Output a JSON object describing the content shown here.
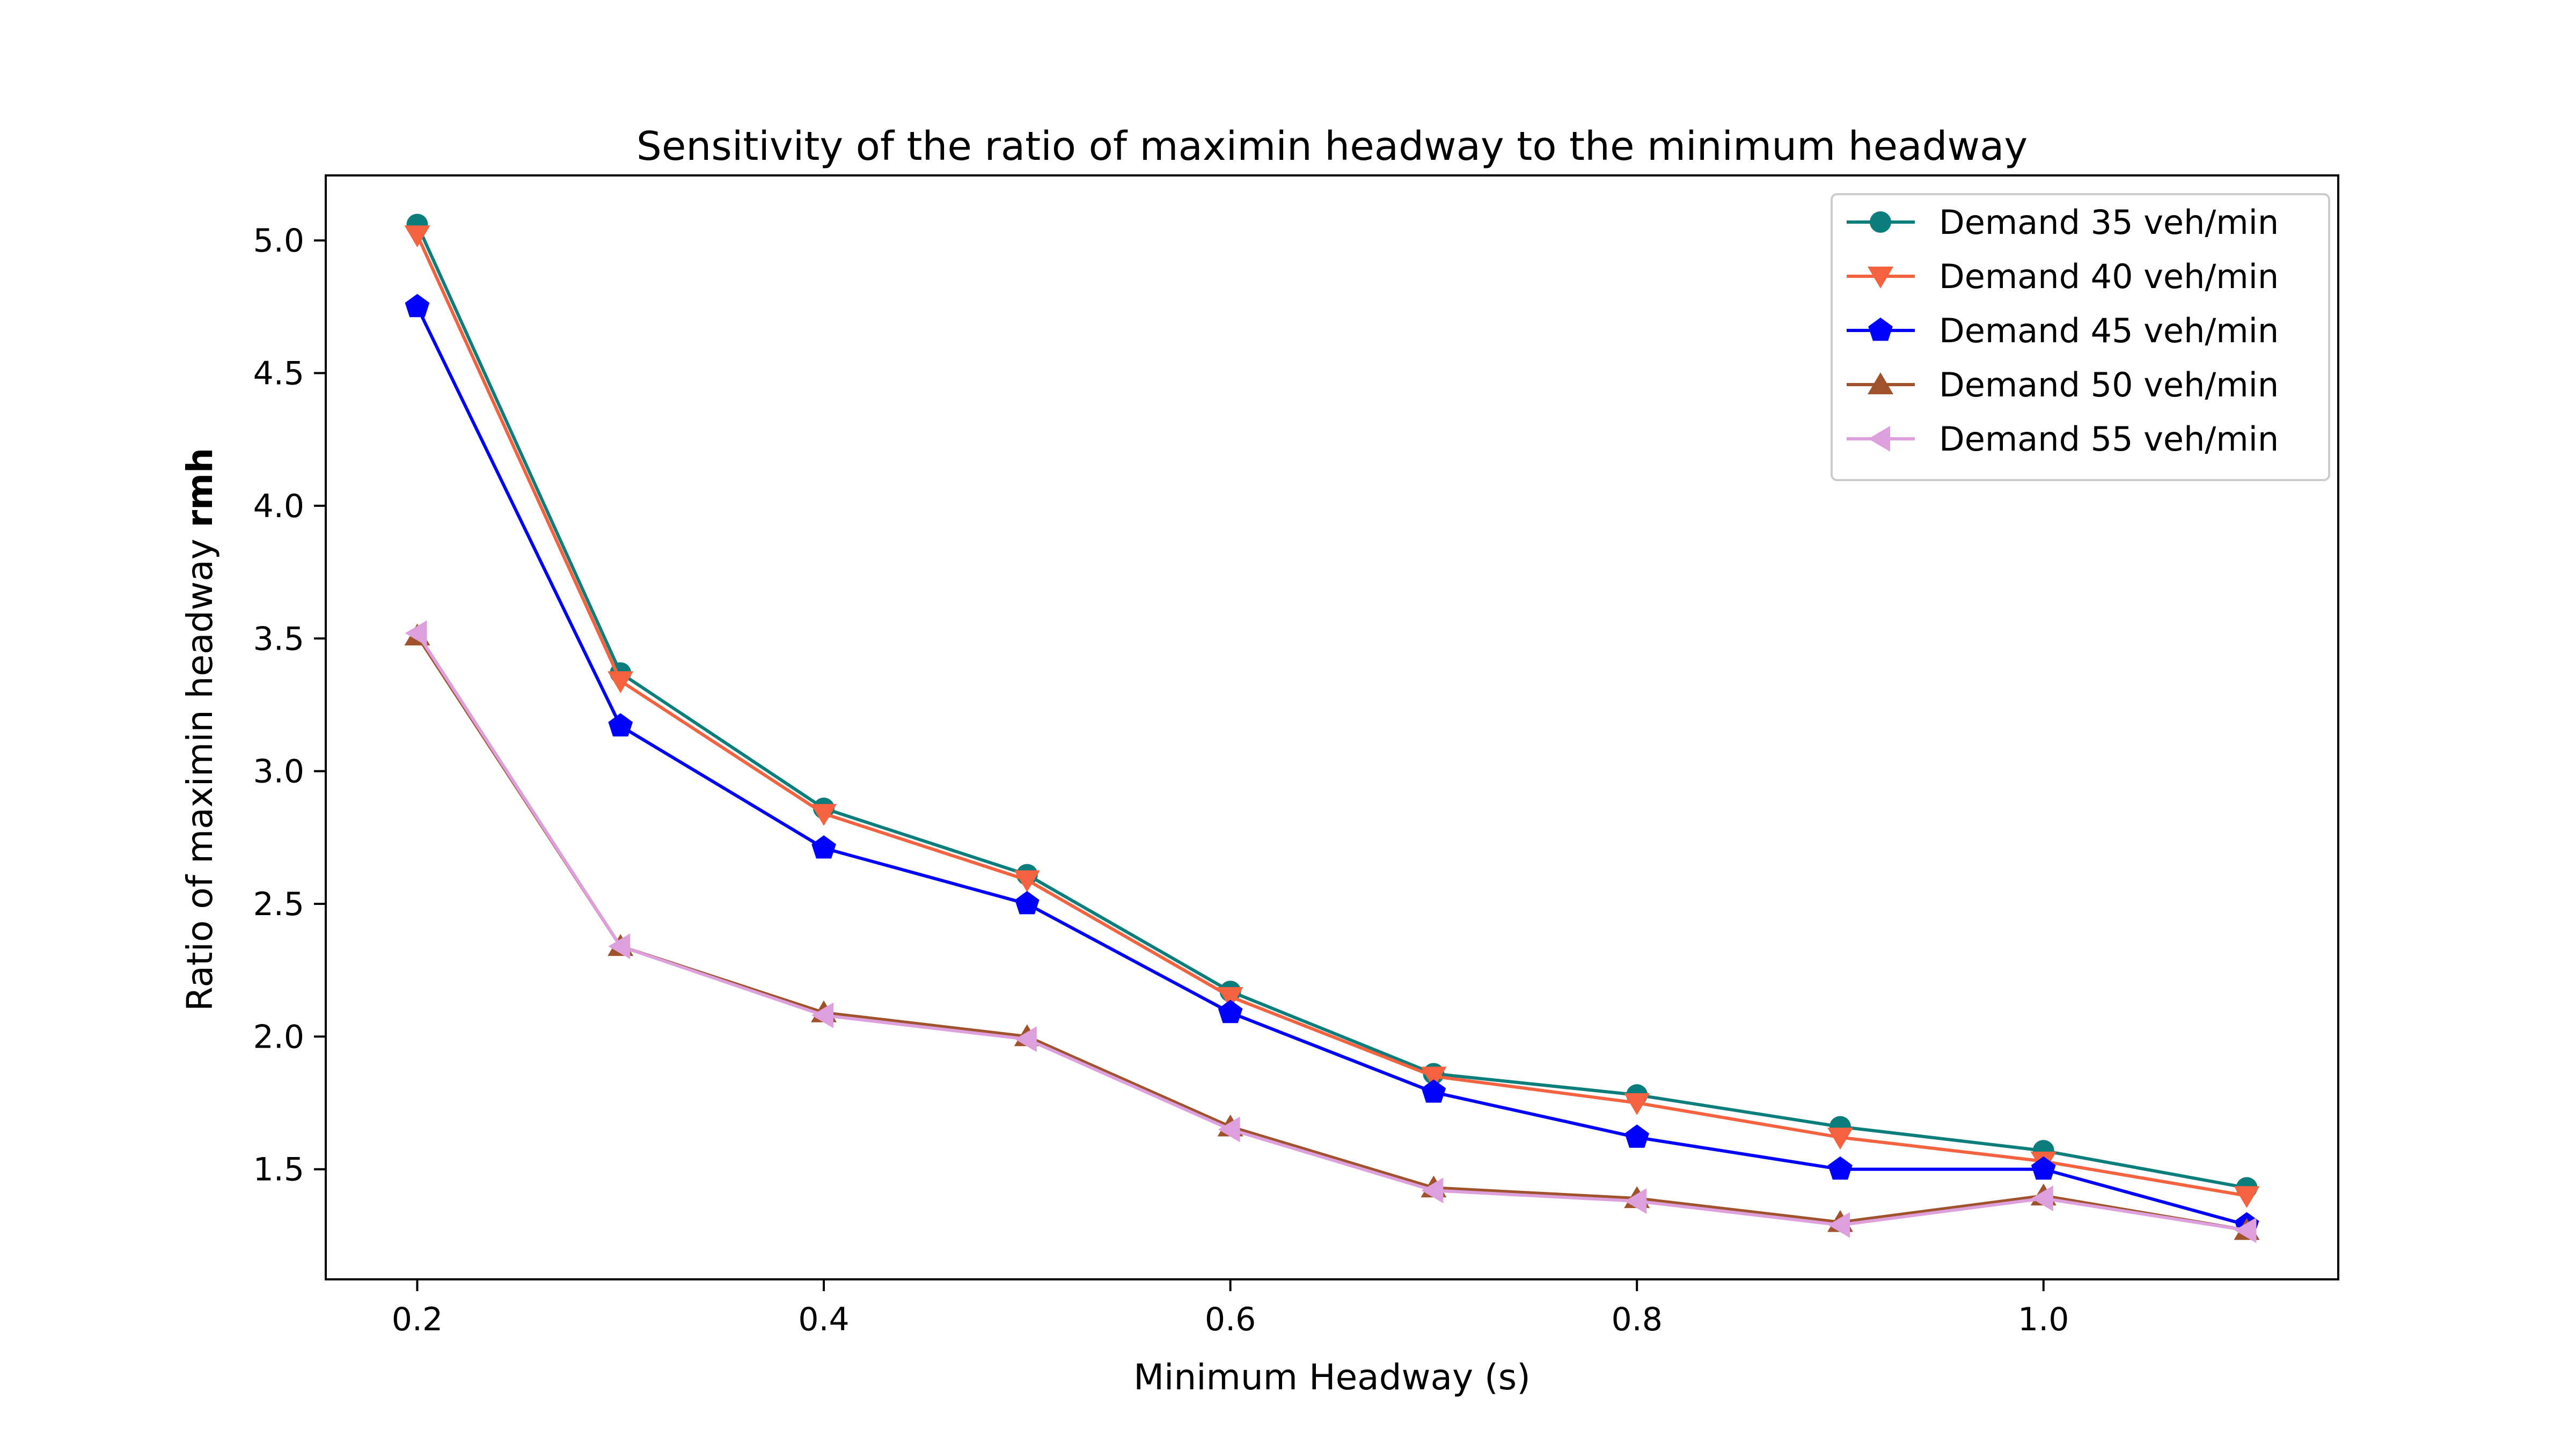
{
  "chart_data": {
    "type": "line",
    "title": "Sensitivity of the ratio of maximin headway to the minimum headway",
    "xlabel": "Minimum Headway (s)",
    "ylabel": "Ratio of maximin headway",
    "ylabel_bold": "rmh",
    "xlim": [
      0.155,
      1.145
    ],
    "ylim": [
      1.085,
      5.245
    ],
    "xticks": [
      0.2,
      0.4,
      0.6,
      0.8,
      1.0
    ],
    "xtick_labels": [
      "0.2",
      "0.4",
      "0.6",
      "0.8",
      "1.0"
    ],
    "yticks": [
      1.5,
      2.0,
      2.5,
      3.0,
      3.5,
      4.0,
      4.5,
      5.0
    ],
    "ytick_labels": [
      "1.5",
      "2.0",
      "2.5",
      "3.0",
      "3.5",
      "4.0",
      "4.5",
      "5.0"
    ],
    "grid": false,
    "legend_position": "top-right",
    "x": [
      0.2,
      0.3,
      0.4,
      0.5,
      0.6,
      0.7,
      0.8,
      0.9,
      1.0,
      1.1
    ],
    "series": [
      {
        "name": "Demand 35 veh/min",
        "color": "#0b7d7a",
        "marker": "circle",
        "values": [
          5.06,
          3.37,
          2.86,
          2.61,
          2.17,
          1.86,
          1.78,
          1.66,
          1.57,
          1.43
        ]
      },
      {
        "name": "Demand 40 veh/min",
        "color": "#f4623f",
        "marker": "triangle-down",
        "values": [
          5.02,
          3.34,
          2.84,
          2.59,
          2.15,
          1.85,
          1.75,
          1.62,
          1.53,
          1.4
        ]
      },
      {
        "name": "Demand 45 veh/min",
        "color": "#0000ff",
        "marker": "pentagon",
        "values": [
          4.75,
          3.17,
          2.71,
          2.5,
          2.09,
          1.79,
          1.62,
          1.5,
          1.5,
          1.29
        ]
      },
      {
        "name": "Demand 50 veh/min",
        "color": "#a0522d",
        "marker": "triangle-up",
        "values": [
          3.51,
          2.34,
          2.09,
          2.0,
          1.66,
          1.43,
          1.39,
          1.3,
          1.4,
          1.27
        ]
      },
      {
        "name": "Demand 55 veh/min",
        "color": "#dda0dd",
        "marker": "triangle-left",
        "values": [
          3.52,
          2.34,
          2.08,
          1.99,
          1.65,
          1.42,
          1.38,
          1.29,
          1.39,
          1.27
        ]
      }
    ]
  }
}
